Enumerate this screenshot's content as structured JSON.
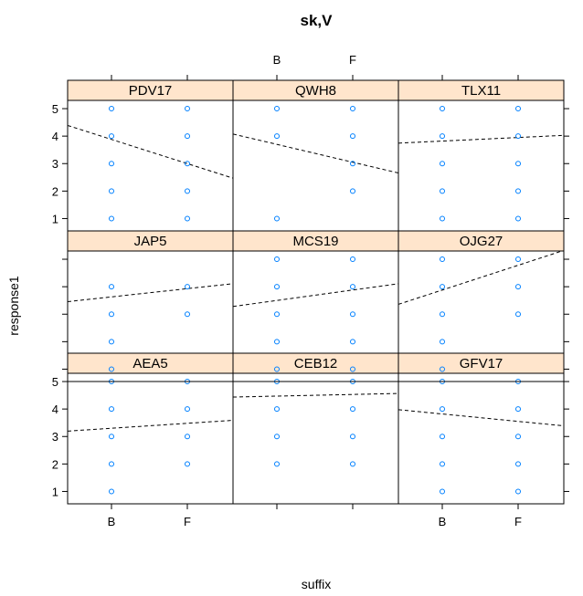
{
  "chart_data": {
    "type": "scatter",
    "title": "sk,V",
    "xlabel": "suffix",
    "ylabel": "response1",
    "categories": [
      "B",
      "F"
    ],
    "yticks": [
      1,
      2,
      3,
      4,
      5
    ],
    "ylim": [
      0.55,
      5.3
    ],
    "colors": {
      "strip": "#ffe5cc",
      "points": "#0080ff",
      "trend": "#000000"
    },
    "panels": [
      {
        "name": "AEA5",
        "points": {
          "B": [
            1,
            2,
            3,
            4,
            5
          ],
          "F": [
            2,
            3,
            4,
            5
          ]
        },
        "trend": {
          "B": 3.3,
          "F": 3.48
        }
      },
      {
        "name": "CEB12",
        "points": {
          "B": [
            2,
            3,
            4,
            5
          ],
          "F": [
            2,
            3,
            4,
            5
          ]
        },
        "trend": {
          "B": 4.47,
          "F": 4.53
        }
      },
      {
        "name": "GFV17",
        "points": {
          "B": [
            1,
            2,
            3,
            4,
            5
          ],
          "F": [
            1,
            2,
            3,
            4,
            5
          ]
        },
        "trend": {
          "B": 3.82,
          "F": 3.55
        }
      },
      {
        "name": "JAP5",
        "points": {
          "B": [
            1,
            2,
            3,
            4
          ],
          "F": [
            3,
            4
          ]
        },
        "trend": {
          "B": 3.63,
          "F": 3.93
        }
      },
      {
        "name": "MCS19",
        "points": {
          "B": [
            1,
            2,
            3,
            4,
            5
          ],
          "F": [
            1,
            2,
            3,
            4,
            5
          ]
        },
        "trend": {
          "B": 3.5,
          "F": 3.88
        }
      },
      {
        "name": "OJG27",
        "points": {
          "B": [
            1,
            2,
            3,
            4,
            5
          ],
          "F": [
            3,
            4,
            5
          ]
        },
        "trend": {
          "B": 3.88,
          "F": 4.78
        }
      },
      {
        "name": "PDV17",
        "points": {
          "B": [
            1,
            2,
            3,
            4,
            5
          ],
          "F": [
            1,
            2,
            3,
            4,
            5
          ]
        },
        "trend": {
          "B": 3.88,
          "F": 3.0
        }
      },
      {
        "name": "QWH8",
        "points": {
          "B": [
            1,
            4,
            5
          ],
          "F": [
            2,
            3,
            4,
            5
          ]
        },
        "trend": {
          "B": 3.7,
          "F": 3.05
        }
      },
      {
        "name": "TLX11",
        "points": {
          "B": [
            1,
            2,
            3,
            4,
            5
          ],
          "F": [
            1,
            2,
            3,
            4,
            5
          ]
        },
        "trend": {
          "B": 3.82,
          "F": 3.95
        }
      }
    ]
  }
}
